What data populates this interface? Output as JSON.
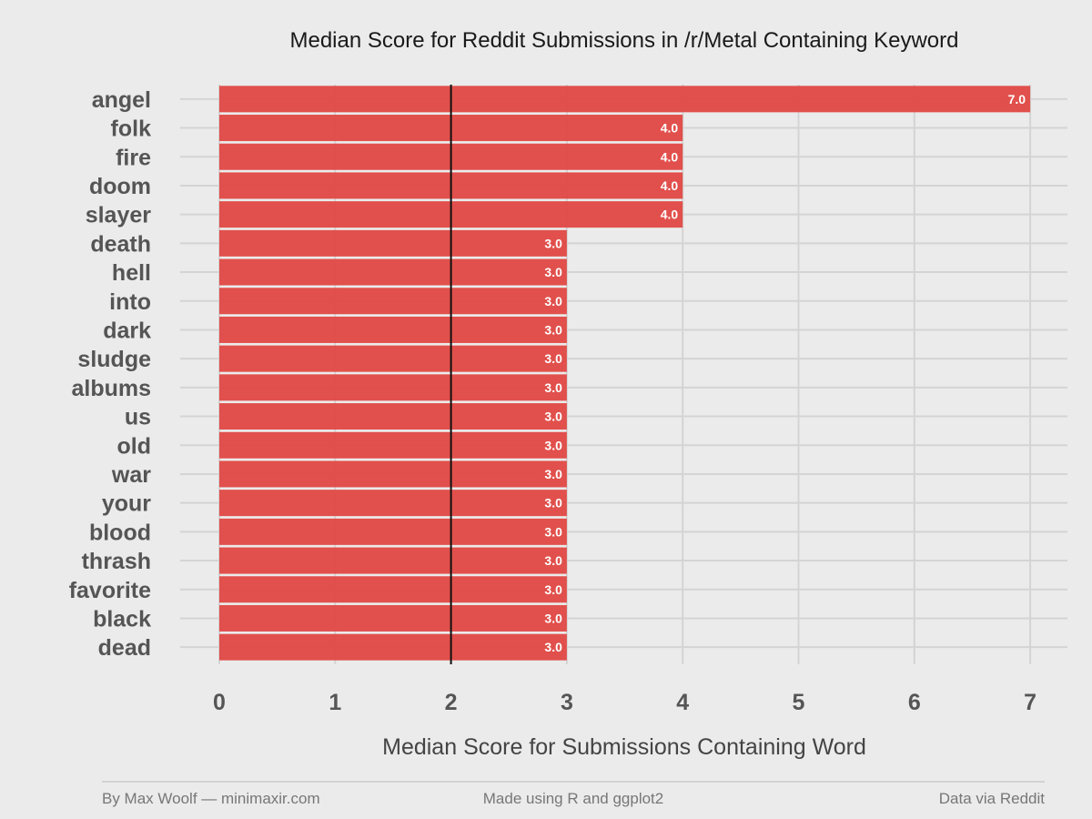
{
  "chart_data": {
    "type": "bar",
    "orientation": "horizontal",
    "title": "Median Score for Reddit Submissions in /r/Metal Containing Keyword",
    "xlabel": "Median Score for Submissions Containing Word",
    "ylabel": "",
    "xlim": [
      0,
      7
    ],
    "x_ticks": [
      "0",
      "1",
      "2",
      "3",
      "4",
      "5",
      "6",
      "7"
    ],
    "reference_line_x": 2,
    "categories": [
      "angel",
      "folk",
      "fire",
      "doom",
      "slayer",
      "death",
      "hell",
      "into",
      "dark",
      "sludge",
      "albums",
      "us",
      "old",
      "war",
      "your",
      "blood",
      "thrash",
      "favorite",
      "black",
      "dead"
    ],
    "values": [
      7.0,
      4.0,
      4.0,
      4.0,
      4.0,
      3.0,
      3.0,
      3.0,
      3.0,
      3.0,
      3.0,
      3.0,
      3.0,
      3.0,
      3.0,
      3.0,
      3.0,
      3.0,
      3.0,
      3.0
    ],
    "value_labels": [
      "7.0",
      "4.0",
      "4.0",
      "4.0",
      "4.0",
      "3.0",
      "3.0",
      "3.0",
      "3.0",
      "3.0",
      "3.0",
      "3.0",
      "3.0",
      "3.0",
      "3.0",
      "3.0",
      "3.0",
      "3.0",
      "3.0",
      "3.0"
    ],
    "grid": true,
    "bar_color": "#e04a46"
  },
  "footer": {
    "left": "By Max Woolf — minimaxir.com",
    "center": "Made using R and ggplot2",
    "right": "Data via Reddit"
  }
}
